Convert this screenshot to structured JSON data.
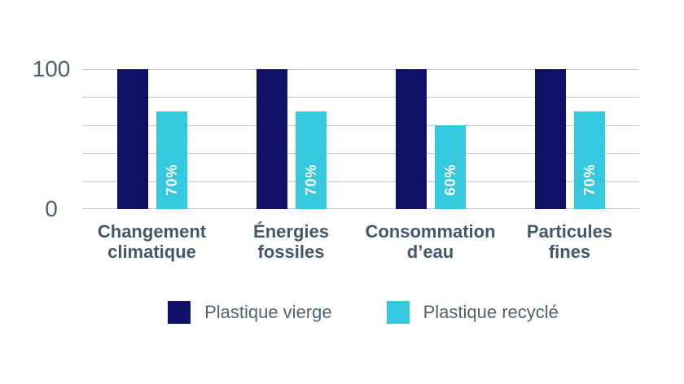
{
  "chart_data": {
    "type": "bar",
    "title": "",
    "categories": [
      "Changement climatique",
      "Énergies fossiles",
      "Consommation d’eau",
      "Particules fines"
    ],
    "category_lines": [
      [
        "Changement",
        "climatique"
      ],
      [
        "Énergies",
        "fossiles"
      ],
      [
        "Consommation",
        "d’eau"
      ],
      [
        "Particules",
        "fines"
      ]
    ],
    "series": [
      {
        "name": "Plastique vierge",
        "color": "#101166",
        "values": [
          100,
          100,
          100,
          100
        ]
      },
      {
        "name": "Plastique recyclé",
        "color": "#35c8de",
        "values": [
          70,
          70,
          60,
          70
        ]
      }
    ],
    "bar_labels": [
      "70%",
      "70%",
      "60%",
      "70%"
    ],
    "y_axis": {
      "ticks": [
        "100",
        "0"
      ],
      "ylim": [
        0,
        100
      ],
      "gridline_step": 20,
      "grid": true
    },
    "legend_position": "bottom",
    "legend": [
      {
        "label": "Plastique vierge",
        "color": "#101166"
      },
      {
        "label": "Plastique recyclé",
        "color": "#35c8de"
      }
    ],
    "colors": {
      "gridline": "#c4c7c9",
      "axis_text": "#4b5f72",
      "category_text": "#44586c",
      "bar_label_text": "#ffffff"
    }
  }
}
